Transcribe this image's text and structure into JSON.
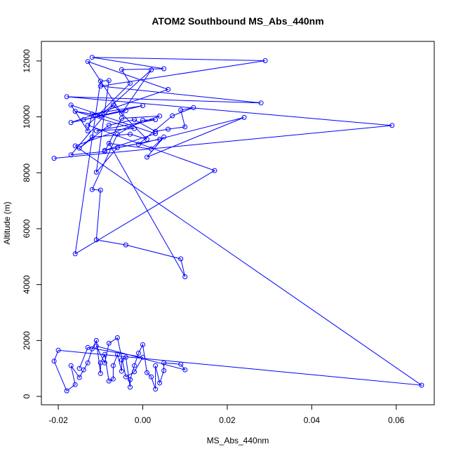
{
  "chart_data": {
    "type": "scatter",
    "title": "ATOM2 Southbound MS_Abs_440nm",
    "xlabel": "MS_Abs_440nm",
    "ylabel": "Altitude (m)",
    "xlim": [
      -0.024,
      0.069
    ],
    "ylim": [
      -300,
      12700
    ],
    "x_ticks": [
      -0.02,
      0.0,
      0.02,
      0.04,
      0.06
    ],
    "x_tick_labels": [
      "-0.02",
      "0.00",
      "0.02",
      "0.04",
      "0.06"
    ],
    "y_ticks": [
      0,
      2000,
      4000,
      6000,
      8000,
      10000,
      12000
    ],
    "y_tick_labels": [
      "0",
      "2000",
      "4000",
      "6000",
      "8000",
      "10000",
      "12000"
    ],
    "grid": false,
    "series_color": "#0000ff",
    "marker": "open-circle",
    "connected": true,
    "series": [
      {
        "points": [
          [
            -0.021,
            8520
          ],
          [
            0.059,
            9690
          ],
          [
            -0.018,
            10720
          ],
          [
            0.028,
            10500
          ],
          [
            -0.01,
            11100
          ],
          [
            0.029,
            12010
          ],
          [
            -0.012,
            12130
          ],
          [
            0.005,
            11720
          ],
          [
            -0.005,
            11690
          ],
          [
            -0.003,
            11200
          ],
          [
            -0.013,
            9700
          ],
          [
            0.017,
            8080
          ],
          [
            -0.016,
            5100
          ],
          [
            -0.01,
            11280
          ],
          [
            -0.008,
            11300
          ],
          [
            -0.011,
            8020
          ],
          [
            -0.006,
            8900
          ],
          [
            0.004,
            9200
          ],
          [
            -0.009,
            8800
          ],
          [
            0.003,
            9400
          ],
          [
            -0.017,
            10420
          ],
          [
            -0.013,
            9500
          ],
          [
            -0.012,
            10100
          ],
          [
            0.0,
            10400
          ],
          [
            -0.014,
            9900
          ],
          [
            -0.004,
            10220
          ],
          [
            -0.017,
            9800
          ],
          [
            0.006,
            10980
          ],
          [
            -0.013,
            11980
          ],
          [
            -0.005,
            10120
          ],
          [
            0.002,
            11680
          ],
          [
            -0.01,
            10050
          ],
          [
            -0.016,
            10200
          ],
          [
            -0.002,
            9580
          ],
          [
            -0.011,
            9500
          ],
          [
            0.003,
            9900
          ],
          [
            0.0,
            9880
          ],
          [
            -0.006,
            9380
          ],
          [
            -0.012,
            7400
          ],
          [
            -0.01,
            7380
          ],
          [
            -0.011,
            5600
          ],
          [
            -0.004,
            5420
          ],
          [
            0.009,
            4920
          ],
          [
            0.01,
            4280
          ],
          [
            -0.008,
            9050
          ],
          [
            0.002,
            8850
          ],
          [
            0.005,
            9280
          ],
          [
            0.001,
            8560
          ],
          [
            0.024,
            9980
          ],
          [
            -0.001,
            9020
          ],
          [
            0.007,
            10040
          ],
          [
            0.012,
            10330
          ],
          [
            0.009,
            10240
          ],
          [
            0.01,
            9640
          ],
          [
            0.006,
            9560
          ],
          [
            0.003,
            9480
          ],
          [
            -0.002,
            9900
          ],
          [
            -0.008,
            9700
          ],
          [
            -0.015,
            8880
          ],
          [
            -0.012,
            9280
          ],
          [
            -0.003,
            9380
          ],
          [
            0.001,
            9200
          ],
          [
            -0.007,
            10420
          ],
          [
            -0.017,
            8640
          ],
          [
            -0.009,
            8760
          ],
          [
            -0.005,
            9950
          ],
          [
            0.004,
            10030
          ],
          [
            -0.016,
            8960
          ],
          [
            0.066,
            400
          ],
          [
            -0.02,
            1650
          ],
          [
            -0.021,
            1260
          ],
          [
            -0.018,
            200
          ],
          [
            -0.016,
            420
          ],
          [
            -0.017,
            1100
          ],
          [
            -0.015,
            680
          ],
          [
            -0.014,
            950
          ],
          [
            -0.013,
            1200
          ],
          [
            -0.012,
            1700
          ],
          [
            -0.011,
            2000
          ],
          [
            -0.01,
            820
          ],
          [
            -0.01,
            1200
          ],
          [
            -0.009,
            1500
          ],
          [
            -0.008,
            550
          ],
          [
            -0.007,
            620
          ],
          [
            -0.007,
            1100
          ],
          [
            -0.006,
            1500
          ],
          [
            -0.005,
            900
          ],
          [
            -0.005,
            1300
          ],
          [
            -0.004,
            1400
          ],
          [
            -0.003,
            330
          ],
          [
            -0.003,
            600
          ],
          [
            -0.002,
            1100
          ],
          [
            -0.001,
            1550
          ],
          [
            0.0,
            1850
          ],
          [
            0.001,
            850
          ],
          [
            0.002,
            700
          ],
          [
            0.003,
            260
          ],
          [
            0.003,
            1100
          ],
          [
            0.004,
            480
          ],
          [
            0.005,
            920
          ],
          [
            0.005,
            1200
          ],
          [
            0.009,
            1150
          ],
          [
            0.01,
            950
          ],
          [
            -0.011,
            1800
          ],
          [
            -0.009,
            1200
          ],
          [
            -0.008,
            1900
          ],
          [
            -0.006,
            2100
          ],
          [
            -0.004,
            700
          ],
          [
            -0.002,
            880
          ],
          [
            0.0,
            1400
          ],
          [
            -0.013,
            1750
          ],
          [
            -0.015,
            1000
          ]
        ]
      }
    ]
  }
}
